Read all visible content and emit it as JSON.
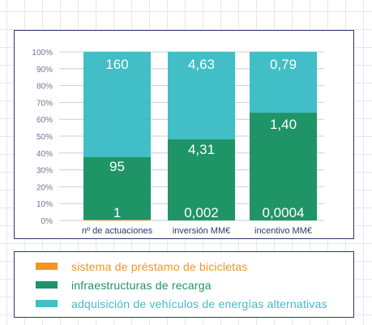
{
  "chart_data": {
    "type": "bar",
    "stacked": "percent",
    "categories": [
      "nº de actuaciones",
      "inversión MM€",
      "incentivo MM€"
    ],
    "ylim": [
      0,
      100
    ],
    "yticks": [
      "0%",
      "10%",
      "20%",
      "30%",
      "40%",
      "50%",
      "60%",
      "70%",
      "80%",
      "90%",
      "100%"
    ],
    "grid": true,
    "legend_position": "bottom",
    "series": [
      {
        "name": "sistema de préstamo de bicicletas",
        "color": "#f7941d",
        "values": [
          1,
          0.002,
          0.0004
        ],
        "labels": [
          "1",
          "0,002",
          "0,0004"
        ],
        "percent": [
          0.4,
          0.02,
          0.02
        ]
      },
      {
        "name": "infraestructuras de recarga",
        "color": "#1f9467",
        "values": [
          95,
          4.31,
          1.4
        ],
        "labels": [
          "95",
          "4,31",
          "1,40"
        ],
        "percent": [
          37.1,
          48.2,
          63.9
        ]
      },
      {
        "name": "adquisición de vehículos de energías alternativas",
        "color": "#41bec6",
        "values": [
          160,
          4.63,
          0.79
        ],
        "labels": [
          "160",
          "4,63",
          "0,79"
        ],
        "percent": [
          62.5,
          51.78,
          36.08
        ]
      }
    ]
  },
  "colors": {
    "panel_border": "#2a3b66",
    "category_text": "#2a3b66",
    "tick_text": "#6e7891",
    "value_label": "#ffffff"
  }
}
